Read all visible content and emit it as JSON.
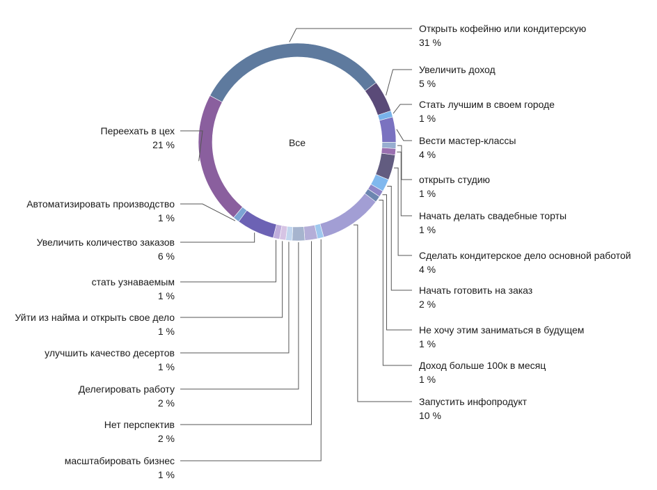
{
  "chart_data": {
    "type": "pie",
    "variant": "donut",
    "center_label": "Все",
    "unit": "%",
    "slices": [
      {
        "label": "Открыть кофейню или кондитерскую",
        "value": 31,
        "display": "31 %",
        "color": "#5e7a9e"
      },
      {
        "label": "Увеличить доход",
        "value": 5,
        "display": "5 %",
        "color": "#5a4a78"
      },
      {
        "label": "Стать лучшим в своем городе",
        "value": 1,
        "display": "1 %",
        "color": "#78b2ea"
      },
      {
        "label": "Вести мастер-классы",
        "value": 4,
        "display": "4 %",
        "color": "#7a72c0"
      },
      {
        "label": "открыть студию",
        "value": 1,
        "display": "1 %",
        "color": "#98aed0"
      },
      {
        "label": "Начать делать свадебные торты",
        "value": 1,
        "display": "1 %",
        "color": "#9a70b0"
      },
      {
        "label": "Сделать кондитерское дело основной работой",
        "value": 4,
        "display": "4 %",
        "color": "#625c80"
      },
      {
        "label": "Начать готовить на заказ",
        "value": 2,
        "display": "2 %",
        "color": "#80b8ee"
      },
      {
        "label": "Не хочу этим заниматься в будущем",
        "value": 1,
        "display": "1 %",
        "color": "#8e86c8"
      },
      {
        "label": "Доход больше 100к в месяц",
        "value": 1,
        "display": "1 %",
        "color": "#6c86b0"
      },
      {
        "label": "Запустить инфопродукт",
        "value": 10,
        "display": "10 %",
        "color": "#a29ed4"
      },
      {
        "label": "масштабировать бизнес",
        "value": 1,
        "display": "1 %",
        "color": "#9fc8ee"
      },
      {
        "label": "Нет перспектив",
        "value": 2,
        "display": "2 %",
        "color": "#b4aed8"
      },
      {
        "label": "Делегировать работу",
        "value": 2,
        "display": "2 %",
        "color": "#a6b4ce"
      },
      {
        "label": "улучшить качество десертов",
        "value": 1,
        "display": "1 %",
        "color": "#c2d6ee"
      },
      {
        "label": "Уйти из найма и открыть свое дело",
        "value": 1,
        "display": "1 %",
        "color": "#d6c4e4"
      },
      {
        "label": "стать узнаваемым",
        "value": 1,
        "display": "1 %",
        "color": "#c0aedc"
      },
      {
        "label": "Увеличить количество заказов",
        "value": 6,
        "display": "6 %",
        "color": "#6c62b4"
      },
      {
        "label": "Автоматизировать производство",
        "value": 1,
        "display": "1 %",
        "color": "#7ca4d4"
      },
      {
        "label": "Переехать в цех",
        "value": 21,
        "display": "21 %",
        "color": "#8a5f9e"
      }
    ]
  }
}
